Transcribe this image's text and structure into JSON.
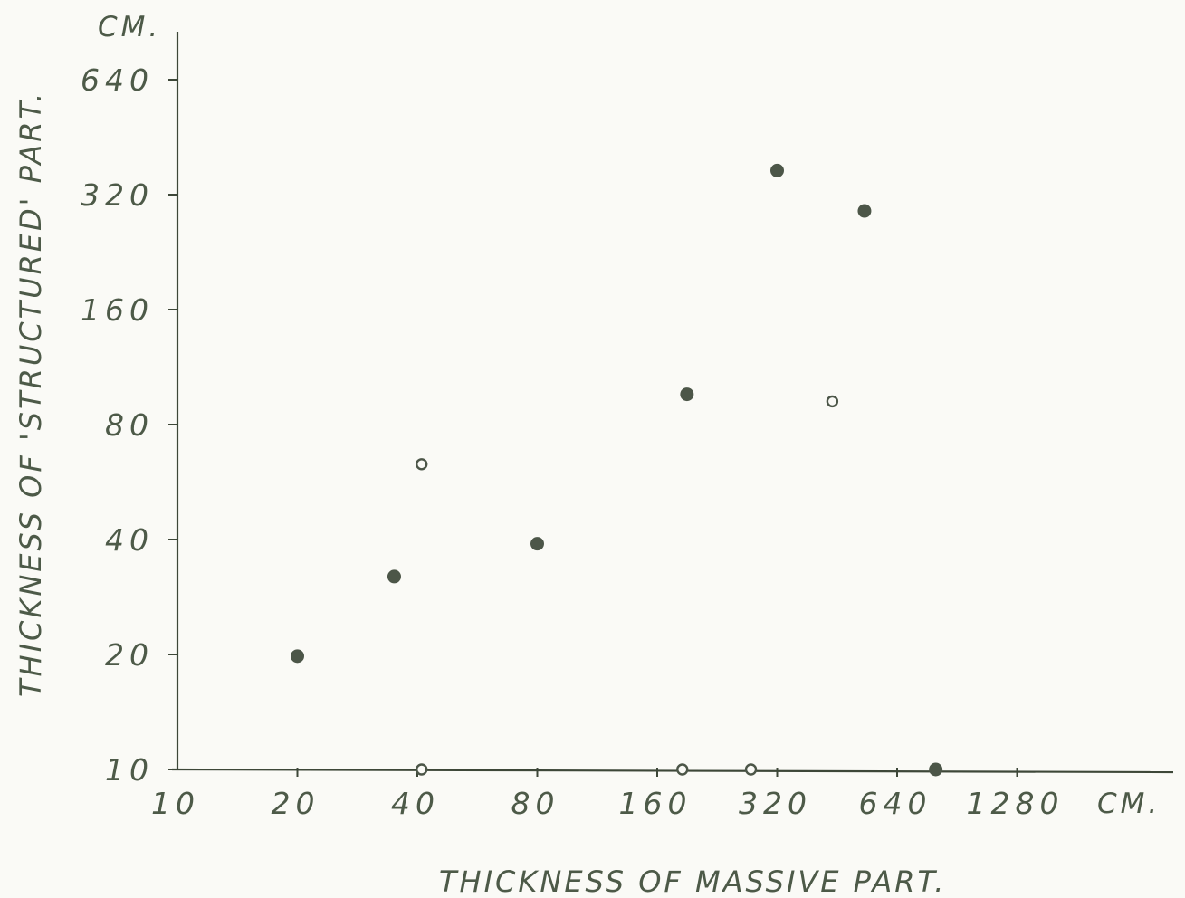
{
  "chart_data": {
    "type": "scatter",
    "xlabel": "THICKNESS  OF MASSIVE  PART.",
    "ylabel": "THICKNESS  OF 'STRUCTURED'  PART.",
    "x_unit": "CM.",
    "y_unit": "CM.",
    "x_scale": "log2",
    "y_scale": "log2",
    "xlim": [
      10,
      2560
    ],
    "ylim": [
      10,
      640
    ],
    "x_ticks": [
      {
        "value": 10,
        "label": "10"
      },
      {
        "value": 20,
        "label": "20"
      },
      {
        "value": 40,
        "label": "40"
      },
      {
        "value": 80,
        "label": "80"
      },
      {
        "value": 160,
        "label": "160"
      },
      {
        "value": 320,
        "label": "320"
      },
      {
        "value": 640,
        "label": "640"
      },
      {
        "value": 1280,
        "label": "1280"
      }
    ],
    "y_ticks": [
      {
        "value": 10,
        "label": "10"
      },
      {
        "value": 20,
        "label": "20"
      },
      {
        "value": 40,
        "label": "40"
      },
      {
        "value": 80,
        "label": "80"
      },
      {
        "value": 160,
        "label": "160"
      },
      {
        "value": 320,
        "label": "320"
      },
      {
        "value": 640,
        "label": "640"
      }
    ],
    "grid": false,
    "legend": "none",
    "series": [
      {
        "marker": "filled-circle",
        "points": [
          {
            "x": 20,
            "y": 19.8
          },
          {
            "x": 35,
            "y": 32
          },
          {
            "x": 80,
            "y": 39
          },
          {
            "x": 190,
            "y": 96
          },
          {
            "x": 320,
            "y": 370
          },
          {
            "x": 530,
            "y": 290
          },
          {
            "x": 800,
            "y": 10
          }
        ]
      },
      {
        "marker": "open-circle",
        "points": [
          {
            "x": 41,
            "y": 63
          },
          {
            "x": 41,
            "y": 10
          },
          {
            "x": 185,
            "y": 10
          },
          {
            "x": 275,
            "y": 10
          },
          {
            "x": 440,
            "y": 92
          }
        ]
      }
    ]
  },
  "colors": {
    "ink": "#4c5648",
    "background": "#fafaf6"
  }
}
